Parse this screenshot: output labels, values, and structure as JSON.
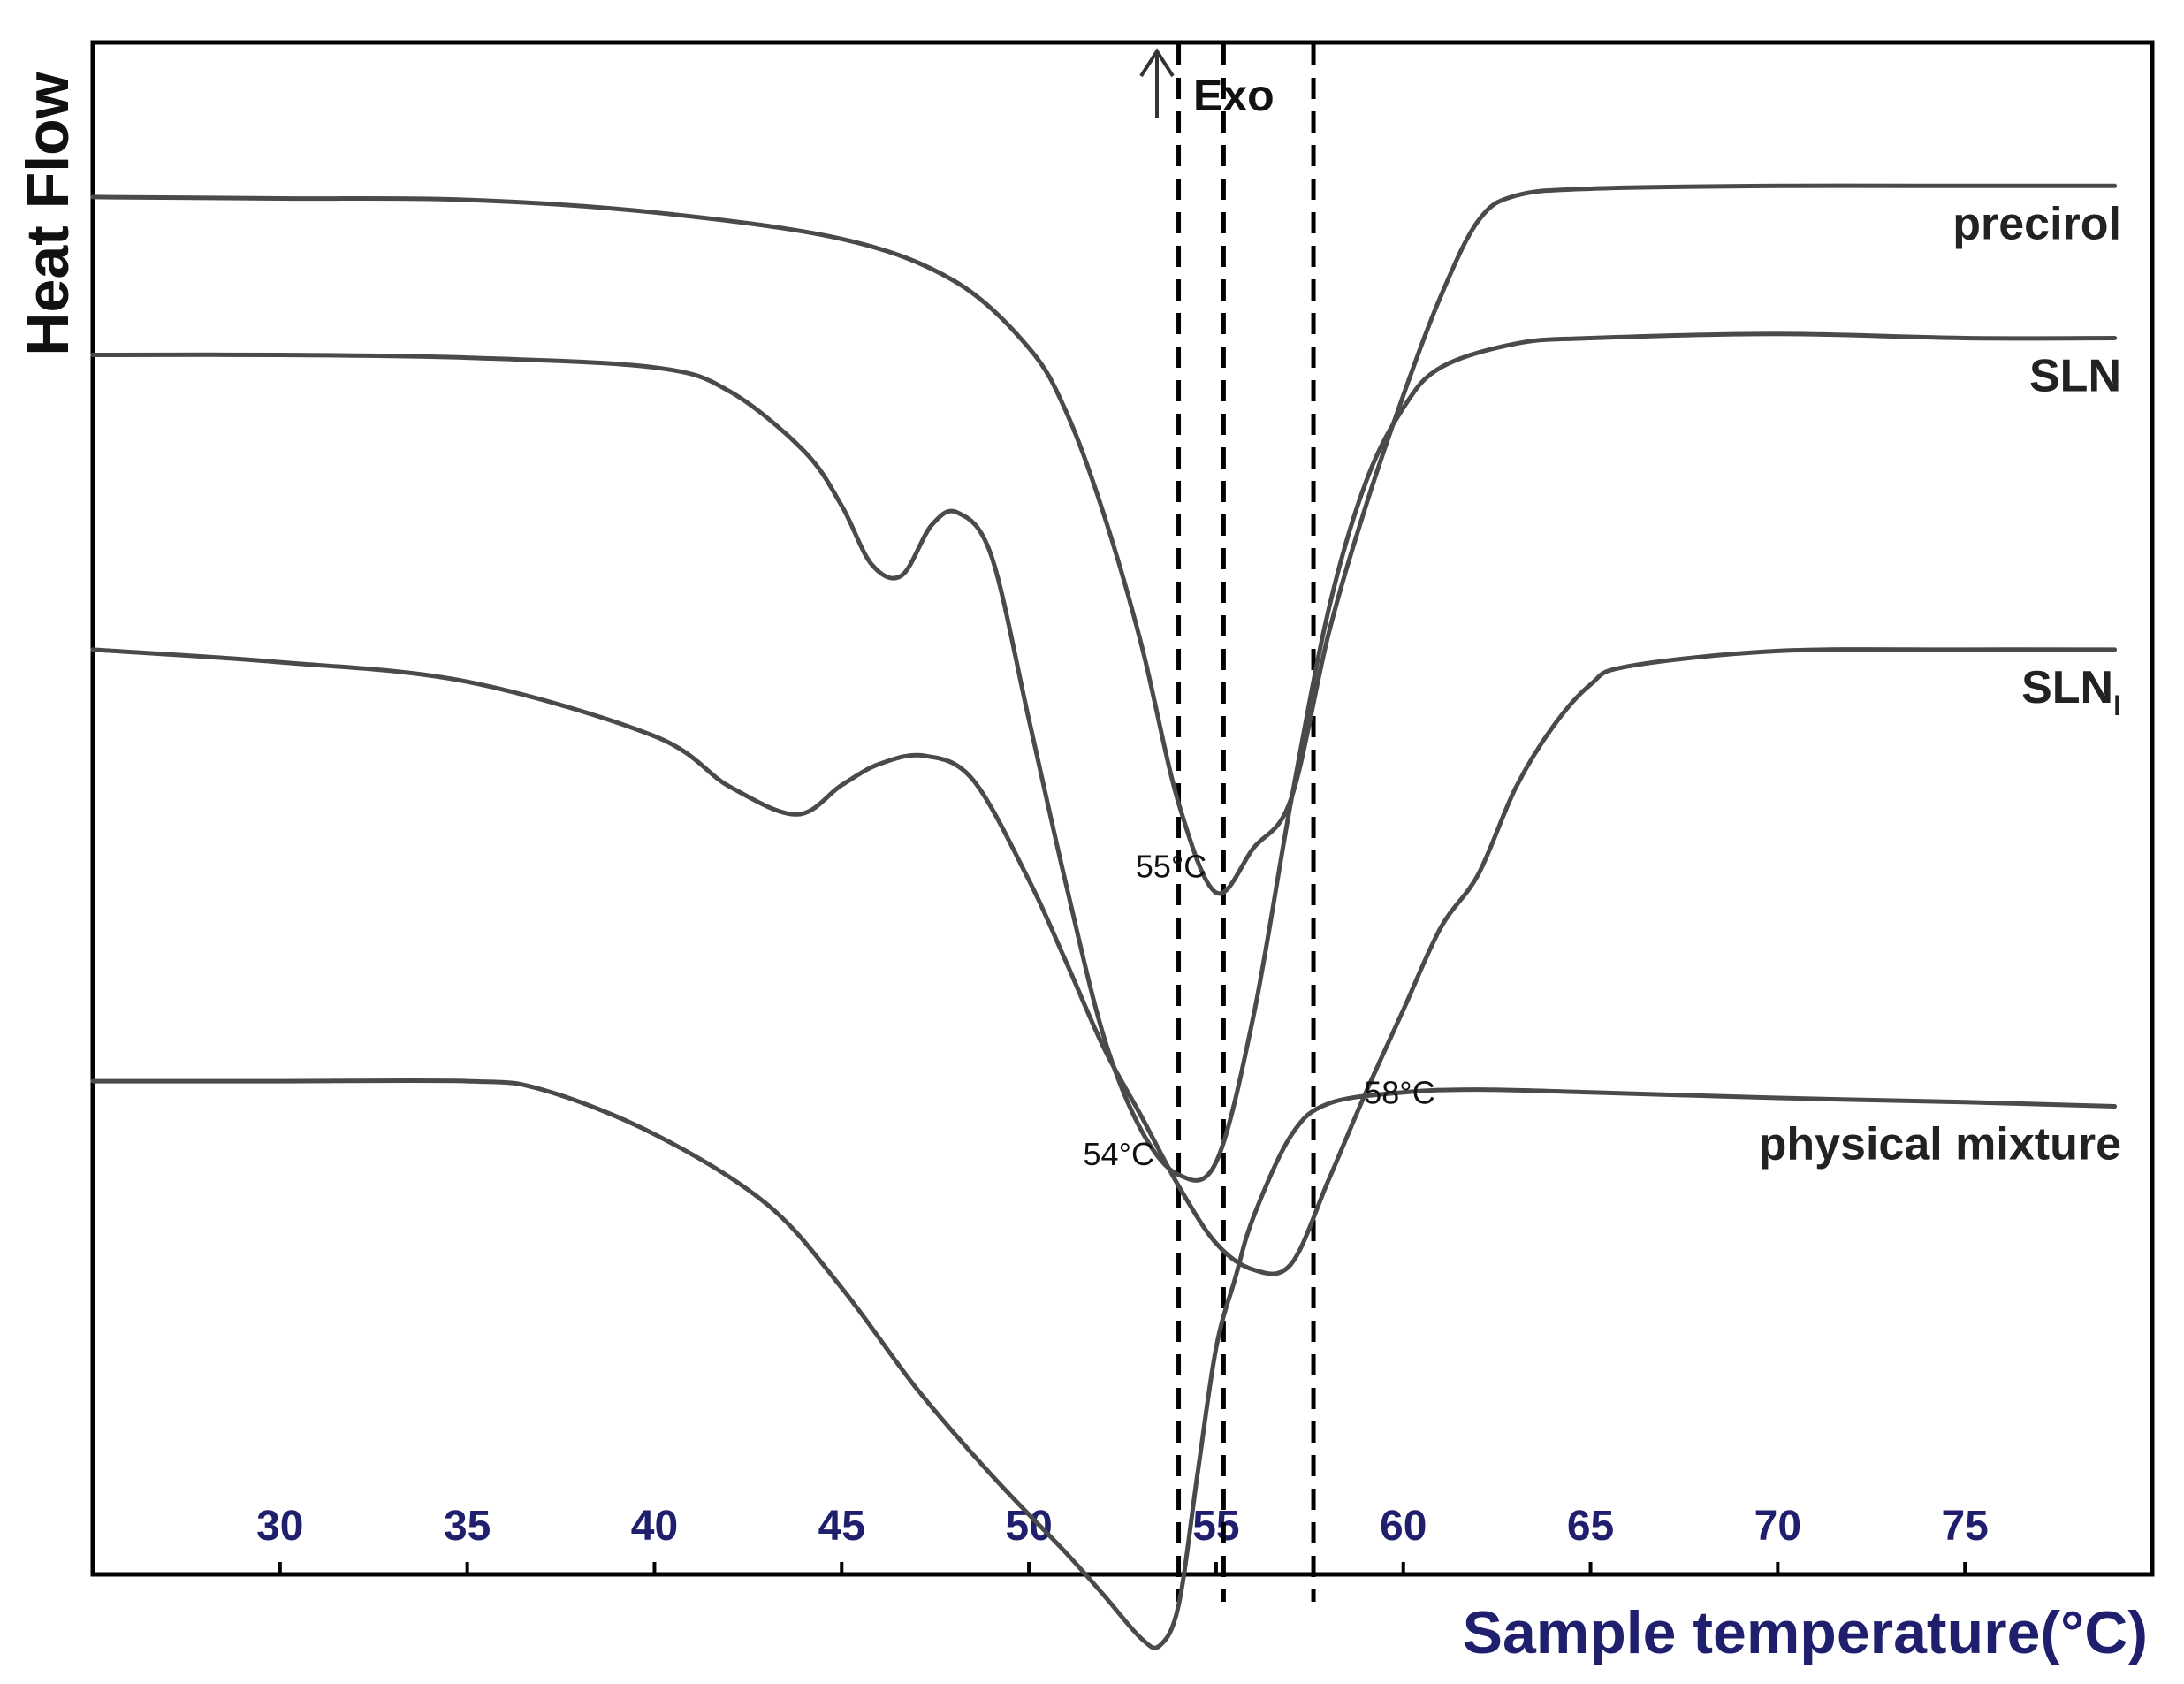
{
  "chart_data": {
    "type": "line",
    "title": "",
    "xlabel": "Sample temperature(°C)",
    "ylabel": "Heat Flow",
    "xlim": [
      25,
      80
    ],
    "x_ticks": [
      30,
      35,
      40,
      45,
      50,
      55,
      60,
      65,
      70,
      75
    ],
    "y_units": "relative offset units (0 = bottom, 100 = top of plot)",
    "exo_marker": {
      "symbol": "↑",
      "label": "Exo"
    },
    "reference_lines_x": [
      54.0,
      55.2,
      57.6
    ],
    "series": [
      {
        "name": "precirol",
        "label": "precirol",
        "x": [
          25,
          30,
          35,
          40,
          45,
          48,
          50,
          51,
          52,
          53,
          54,
          55,
          56,
          57,
          58,
          59,
          60,
          61,
          62,
          63,
          65,
          70,
          75,
          79
        ],
        "y": [
          95.7,
          95.6,
          95.5,
          94.6,
          92.7,
          89.7,
          84.9,
          80.3,
          73.0,
          63.7,
          52.3,
          45.9,
          49.1,
          52.6,
          64.4,
          73.6,
          81.5,
          88.6,
          94.0,
          95.8,
          96.3,
          96.5,
          96.5,
          96.5
        ]
      },
      {
        "name": "SLN",
        "label": "SLN",
        "x": [
          25,
          30,
          35,
          40,
          42,
          44,
          45,
          45.8,
          46.6,
          47.4,
          48.1,
          49,
          50,
          51,
          52,
          53,
          54,
          55,
          56,
          57,
          58,
          59,
          60,
          61,
          63,
          65,
          70,
          75,
          79
        ],
        "y": [
          84.4,
          84.4,
          84.2,
          83.5,
          81.8,
          77.5,
          73.6,
          69.4,
          68.6,
          72.2,
          73.1,
          70.0,
          58.3,
          46.4,
          35.6,
          28.9,
          25.7,
          26.6,
          37.1,
          52.4,
          66.1,
          75.3,
          80.6,
          83.5,
          85.2,
          85.6,
          85.9,
          85.6,
          85.6
        ]
      },
      {
        "name": "SLN_I",
        "label": "SLN",
        "subscript": "I",
        "x": [
          25,
          30,
          35,
          40,
          42,
          43.8,
          45,
          46,
          47.2,
          48.5,
          50,
          51,
          52,
          53,
          54,
          55,
          56,
          57,
          58,
          59,
          60,
          61,
          62,
          63,
          64,
          65,
          66,
          70,
          75,
          79
        ],
        "y": [
          63.3,
          62.4,
          61.0,
          57.1,
          53.5,
          51.5,
          53.6,
          55.1,
          55.7,
          54.0,
          46.8,
          40.9,
          34.8,
          29.9,
          24.9,
          20.8,
          18.9,
          19.3,
          25.3,
          31.6,
          37.5,
          43.4,
          47.2,
          53.4,
          57.8,
          60.8,
          62.1,
          63.2,
          63.3,
          63.3
        ]
      },
      {
        "name": "physical mixture",
        "label": "physical mixture",
        "x": [
          25,
          30,
          35,
          37,
          40,
          43,
          45,
          47,
          49,
          51,
          52,
          53,
          53.5,
          54,
          54.5,
          55,
          55.5,
          56,
          57,
          58,
          60,
          62,
          65,
          70,
          75,
          79
        ],
        "y": [
          32.4,
          32.4,
          32.4,
          31.8,
          28.6,
          23.6,
          17.6,
          10.4,
          4.2,
          -1.4,
          -4.4,
          -7.5,
          -8.0,
          -5.1,
          4.2,
          13.3,
          18.2,
          22.7,
          28.5,
          30.8,
          31.6,
          31.8,
          31.6,
          31.2,
          30.9,
          30.6
        ]
      }
    ],
    "annotations": [
      {
        "text": "55°C",
        "x": 53.8,
        "y": 47.0
      },
      {
        "text": "54°C",
        "x": 52.4,
        "y": 26.4
      },
      {
        "text": "58°C",
        "x": 59.9,
        "y": 30.8
      }
    ]
  }
}
